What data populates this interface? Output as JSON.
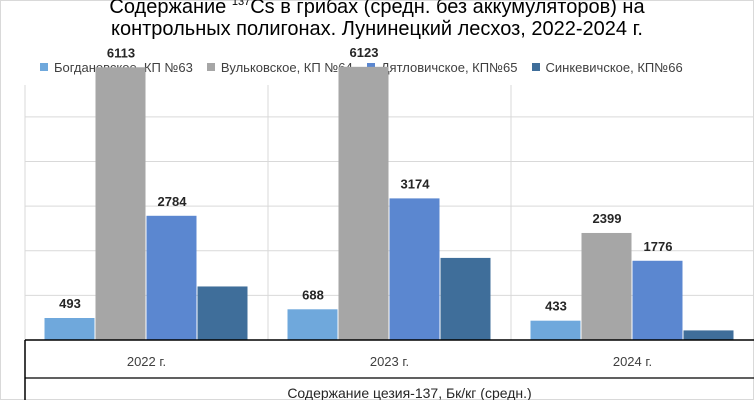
{
  "title_line1_prefix": "Содержание ",
  "title_sup": "137",
  "title_line1_suffix": "Cs в грибах (средн. без аккумуляторов) на",
  "title_line2": "контрольных полигонах. Лунинецкий лесхоз, 2022-2024 г.",
  "chart_data": {
    "type": "bar",
    "title": "Содержание 137Cs в грибах (средн. без аккумуляторов) на контрольных полигонах. Лунинецкий лесхоз, 2022-2024 г.",
    "categories": [
      "2022 г.",
      "2023 г.",
      "2024 г."
    ],
    "series": [
      {
        "name": "Богдановское, КП №63",
        "values": [
          493,
          688,
          433
        ],
        "color": "#6fa8dc",
        "labels": [
          "493",
          "688",
          "433"
        ]
      },
      {
        "name": "Вульковское, КП №64",
        "values": [
          6113,
          6123,
          2399
        ],
        "color": "#a6a6a6",
        "labels": [
          "6113",
          "6123",
          "2399"
        ]
      },
      {
        "name": "Дятловичское, КП№65",
        "values": [
          2784,
          3174,
          1776
        ],
        "color": "#5b87d0",
        "labels": [
          "2784",
          "3174",
          "1776"
        ]
      },
      {
        "name": "Синкевичское, КП№66",
        "values": [
          1200,
          1840,
          215
        ],
        "color": "#3f6e9a",
        "labels": [
          "",
          "",
          ""
        ]
      }
    ],
    "ylim": [
      0,
      6500
    ],
    "gridline_step": 1000,
    "grid": true,
    "legend": "top",
    "xlabel": "Содержание цезия-137, Бк/кг (средн.)"
  }
}
